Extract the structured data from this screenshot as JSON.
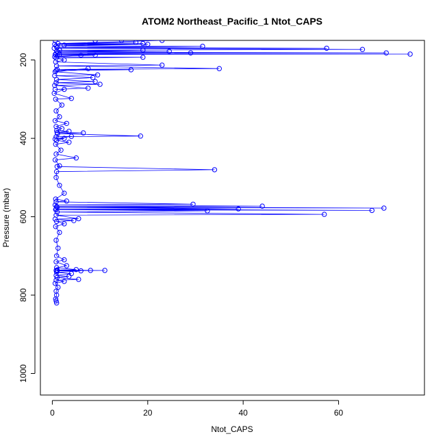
{
  "chart_data": {
    "type": "line",
    "title": "ATOM2 Northeast_Pacific_1 Ntot_CAPS",
    "xlabel": "Ntot_CAPS",
    "ylabel": "Pressure (mbar)",
    "xlim": [
      -2.5,
      78
    ],
    "ylim": [
      1055,
      150
    ],
    "y_reversed": true,
    "x_ticks": [
      0,
      20,
      40,
      60
    ],
    "y_ticks": [
      200,
      400,
      600,
      800,
      1000
    ],
    "grid": false,
    "legend": "none",
    "colors": {
      "series": "#0000ff",
      "axis": "#000000",
      "background": "#ffffff"
    },
    "series": [
      {
        "marker": "open-circle",
        "points": [
          [
            0.6,
            150
          ],
          [
            9.0,
            150
          ],
          [
            14.5,
            150
          ],
          [
            23.0,
            150
          ],
          [
            1.2,
            158
          ],
          [
            17.5,
            155
          ],
          [
            0.5,
            160
          ],
          [
            19.0,
            158
          ],
          [
            2.5,
            162
          ],
          [
            20.0,
            160
          ],
          [
            0.8,
            164
          ],
          [
            31.5,
            165
          ],
          [
            1.0,
            168
          ],
          [
            57.5,
            170
          ],
          [
            0.4,
            170
          ],
          [
            65.0,
            173
          ],
          [
            1.5,
            175
          ],
          [
            19.0,
            175
          ],
          [
            0.9,
            178
          ],
          [
            24.5,
            178
          ],
          [
            1.2,
            180
          ],
          [
            70.0,
            182
          ],
          [
            0.8,
            183
          ],
          [
            29.0,
            182
          ],
          [
            1.5,
            185
          ],
          [
            75.0,
            185
          ],
          [
            0.6,
            186
          ],
          [
            9.0,
            188
          ],
          [
            1.0,
            190
          ],
          [
            6.0,
            188
          ],
          [
            0.5,
            192
          ],
          [
            19.0,
            193
          ],
          [
            0.8,
            195
          ],
          [
            2.5,
            200
          ],
          [
            0.7,
            205
          ],
          [
            23.0,
            213
          ],
          [
            0.9,
            215
          ],
          [
            35.0,
            222
          ],
          [
            1.0,
            224
          ],
          [
            16.5,
            225
          ],
          [
            0.8,
            227
          ],
          [
            7.5,
            222
          ],
          [
            0.6,
            230
          ],
          [
            9.5,
            238
          ],
          [
            0.5,
            240
          ],
          [
            8.5,
            245
          ],
          [
            0.9,
            250
          ],
          [
            9.0,
            255
          ],
          [
            0.8,
            258
          ],
          [
            10.0,
            262
          ],
          [
            0.5,
            265
          ],
          [
            7.5,
            272
          ],
          [
            0.6,
            275
          ],
          [
            2.5,
            275
          ],
          [
            0.4,
            285
          ],
          [
            4.0,
            298
          ],
          [
            0.7,
            300
          ],
          [
            2.0,
            315
          ],
          [
            0.8,
            330
          ],
          [
            1.5,
            345
          ],
          [
            0.6,
            355
          ],
          [
            3.0,
            362
          ],
          [
            0.8,
            370
          ],
          [
            2.0,
            375
          ],
          [
            0.9,
            380
          ],
          [
            3.5,
            382
          ],
          [
            1.0,
            385
          ],
          [
            6.5,
            386
          ],
          [
            1.1,
            388
          ],
          [
            18.5,
            394
          ],
          [
            0.8,
            396
          ],
          [
            4.0,
            395
          ],
          [
            0.6,
            402
          ],
          [
            2.5,
            400
          ],
          [
            0.9,
            405
          ],
          [
            3.5,
            410
          ],
          [
            0.7,
            415
          ],
          [
            1.8,
            430
          ],
          [
            0.8,
            440
          ],
          [
            5.0,
            450
          ],
          [
            0.6,
            455
          ],
          [
            1.5,
            470
          ],
          [
            1.0,
            472
          ],
          [
            34.0,
            480
          ],
          [
            0.9,
            485
          ],
          [
            0.8,
            500
          ],
          [
            1.5,
            520
          ],
          [
            2.5,
            540
          ],
          [
            0.7,
            555
          ],
          [
            3.0,
            560
          ],
          [
            0.8,
            562
          ],
          [
            29.5,
            568
          ],
          [
            0.6,
            570
          ],
          [
            44.0,
            573
          ],
          [
            0.9,
            574
          ],
          [
            69.5,
            578
          ],
          [
            1.0,
            576
          ],
          [
            39.0,
            580
          ],
          [
            0.8,
            580
          ],
          [
            67.0,
            584
          ],
          [
            0.7,
            582
          ],
          [
            32.5,
            585
          ],
          [
            1.0,
            588
          ],
          [
            57.0,
            594
          ],
          [
            0.8,
            596
          ],
          [
            5.5,
            605
          ],
          [
            0.6,
            606
          ],
          [
            4.5,
            610
          ],
          [
            0.9,
            612
          ],
          [
            2.5,
            618
          ],
          [
            0.7,
            625
          ],
          [
            1.5,
            640
          ],
          [
            0.8,
            660
          ],
          [
            1.2,
            680
          ],
          [
            0.9,
            700
          ],
          [
            2.5,
            710
          ],
          [
            0.8,
            715
          ],
          [
            3.0,
            725
          ],
          [
            0.9,
            730
          ],
          [
            5.0,
            735
          ],
          [
            1.0,
            736
          ],
          [
            8.0,
            737
          ],
          [
            0.8,
            737
          ],
          [
            11.0,
            737
          ],
          [
            1.0,
            738
          ],
          [
            6.0,
            738
          ],
          [
            0.9,
            742
          ],
          [
            4.0,
            745
          ],
          [
            0.8,
            750
          ],
          [
            3.5,
            752
          ],
          [
            1.0,
            755
          ],
          [
            5.5,
            760
          ],
          [
            0.8,
            762
          ],
          [
            2.5,
            765
          ],
          [
            0.6,
            770
          ],
          [
            1.2,
            780
          ],
          [
            0.8,
            790
          ],
          [
            0.9,
            800
          ],
          [
            0.7,
            810
          ],
          [
            0.8,
            815
          ],
          [
            0.9,
            820
          ]
        ]
      }
    ]
  }
}
